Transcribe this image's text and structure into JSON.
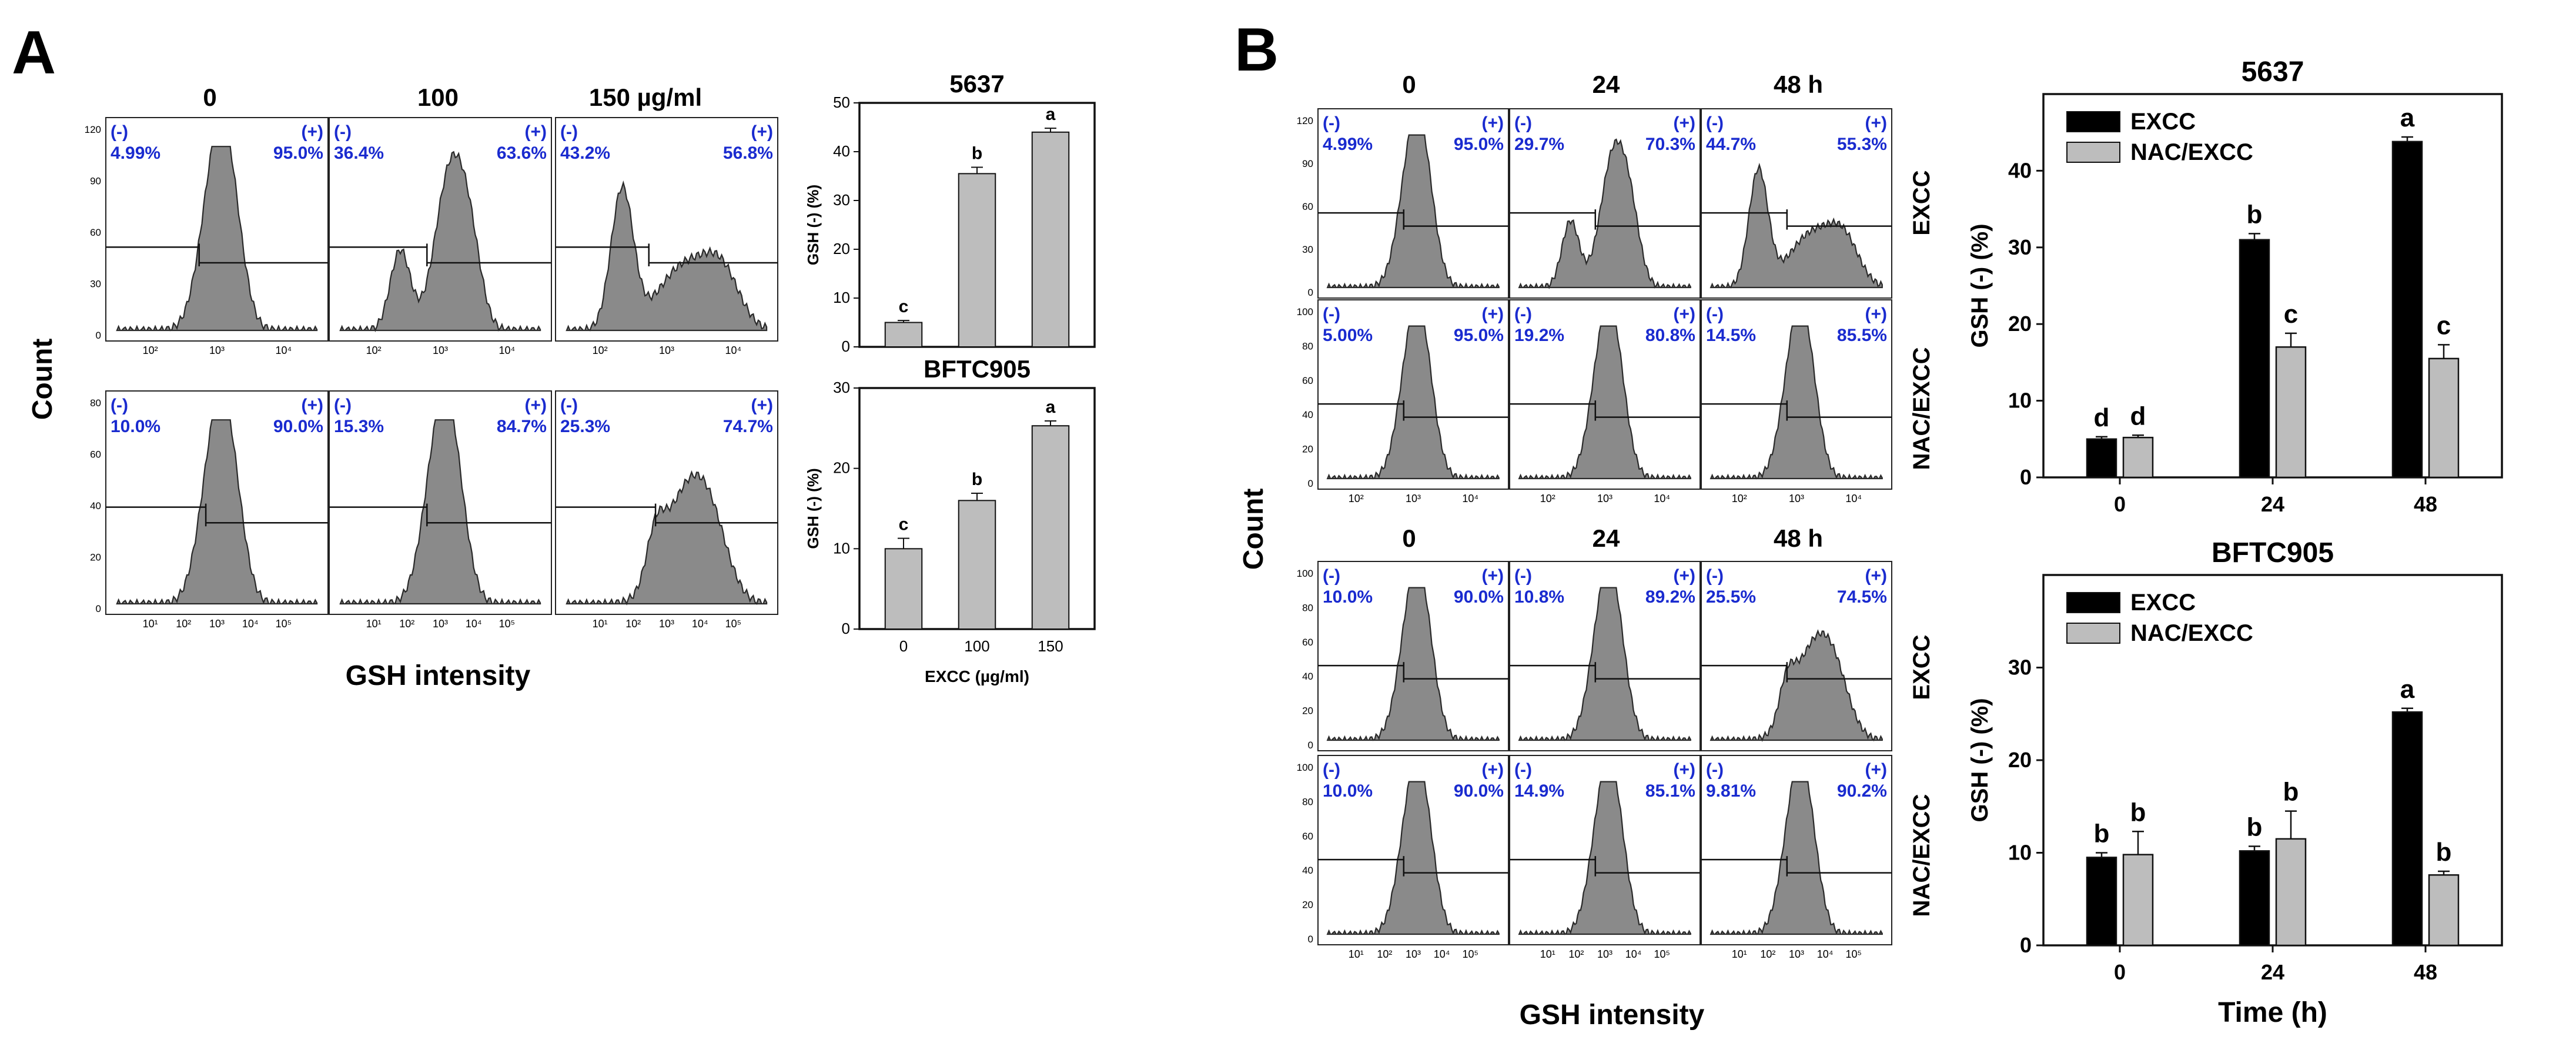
{
  "panelA": {
    "letter": "A",
    "col_headers": [
      "0",
      "100",
      "150 µg/ml"
    ],
    "y_axis_label": "Count",
    "x_axis_label": "GSH intensity",
    "rows": [
      {
        "yticks": [
          "0",
          "30",
          "60",
          "90",
          "120"
        ],
        "xticks": [
          "10²",
          "10³",
          "10⁴"
        ],
        "cells": [
          {
            "neg": "4.99%",
            "pos": "95.0%"
          },
          {
            "neg": "36.4%",
            "pos": "63.6%"
          },
          {
            "neg": "43.2%",
            "pos": "56.8%"
          }
        ]
      },
      {
        "yticks": [
          "0",
          "20",
          "40",
          "60",
          "80"
        ],
        "xticks": [
          "10¹",
          "10²",
          "10³",
          "10⁴",
          "10⁵"
        ],
        "cells": [
          {
            "neg": "10.0%",
            "pos": "90.0%"
          },
          {
            "neg": "15.3%",
            "pos": "84.7%"
          },
          {
            "neg": "25.3%",
            "pos": "74.7%"
          }
        ]
      }
    ],
    "gate_labels": {
      "neg": "(-)",
      "pos": "(+)"
    }
  },
  "panelB": {
    "letter": "B",
    "col_headers_top": [
      "0",
      "24",
      "48 h"
    ],
    "col_headers_bottom": [
      "0",
      "24",
      "48 h"
    ],
    "y_axis_label": "Count",
    "x_axis_label": "GSH intensity",
    "row_labels": [
      "EXCC",
      "NAC/EXCC",
      "EXCC",
      "NAC/EXCC"
    ],
    "rows": [
      {
        "yticks": [
          "0",
          "30",
          "60",
          "90",
          "120"
        ],
        "xticks": [],
        "cells": [
          {
            "neg": "4.99%",
            "pos": "95.0%"
          },
          {
            "neg": "29.7%",
            "pos": "70.3%"
          },
          {
            "neg": "44.7%",
            "pos": "55.3%"
          }
        ]
      },
      {
        "yticks": [
          "0",
          "20",
          "40",
          "60",
          "80",
          "100"
        ],
        "xticks": [
          "10²",
          "10³",
          "10⁴"
        ],
        "cells": [
          {
            "neg": "5.00%",
            "pos": "95.0%"
          },
          {
            "neg": "19.2%",
            "pos": "80.8%"
          },
          {
            "neg": "14.5%",
            "pos": "85.5%"
          }
        ]
      },
      {
        "yticks": [
          "0",
          "20",
          "40",
          "60",
          "80",
          "100"
        ],
        "xticks": [],
        "cells": [
          {
            "neg": "10.0%",
            "pos": "90.0%"
          },
          {
            "neg": "10.8%",
            "pos": "89.2%"
          },
          {
            "neg": "25.5%",
            "pos": "74.5%"
          }
        ]
      },
      {
        "yticks": [
          "0",
          "20",
          "40",
          "60",
          "80",
          "100"
        ],
        "xticks": [
          "10¹",
          "10²",
          "10³",
          "10⁴",
          "10⁵"
        ],
        "cells": [
          {
            "neg": "10.0%",
            "pos": "90.0%"
          },
          {
            "neg": "14.9%",
            "pos": "85.1%"
          },
          {
            "neg": "9.81%",
            "pos": "90.2%"
          }
        ]
      }
    ],
    "gate_labels": {
      "neg": "(-)",
      "pos": "(+)"
    }
  },
  "chart_data": [
    {
      "type": "bar",
      "title": "5637",
      "categories": [
        "0",
        "100",
        "150"
      ],
      "values": [
        5,
        35.5,
        44
      ],
      "errors": [
        0.4,
        1.3,
        0.8
      ],
      "letters": [
        "c",
        "b",
        "a"
      ],
      "xlabel": "",
      "ylabel": "GSH (-) (%)",
      "ylim": [
        0,
        50
      ],
      "yticks": [
        0,
        10,
        20,
        30,
        40,
        50
      ],
      "color": "#bdbdbd"
    },
    {
      "type": "bar",
      "title": "BFTC905",
      "categories": [
        "0",
        "100",
        "150"
      ],
      "values": [
        10,
        16,
        25.3
      ],
      "errors": [
        1.3,
        0.9,
        0.6
      ],
      "letters": [
        "c",
        "b",
        "a"
      ],
      "xlabel": "EXCC (µg/ml)",
      "ylabel": "GSH (-) (%)",
      "ylim": [
        0,
        30
      ],
      "yticks": [
        0,
        10,
        20,
        30
      ],
      "color": "#bdbdbd"
    },
    {
      "type": "bar",
      "title": "5637",
      "categories": [
        "0",
        "24",
        "48"
      ],
      "series": [
        {
          "name": "EXCC",
          "color": "#000000",
          "values": [
            5,
            31,
            43.8
          ],
          "errors": [
            0.3,
            0.8,
            0.6
          ],
          "letters": [
            "d",
            "b",
            "a"
          ]
        },
        {
          "name": "NAC/EXCC",
          "color": "#bdbdbd",
          "values": [
            5.2,
            17,
            15.5
          ],
          "errors": [
            0.3,
            1.8,
            1.8
          ],
          "letters": [
            "d",
            "c",
            "c"
          ]
        }
      ],
      "xlabel": "",
      "ylabel": "GSH (-) (%)",
      "ylim": [
        0,
        50
      ],
      "yticks": [
        0,
        10,
        20,
        30,
        40
      ],
      "legend": "top-left"
    },
    {
      "type": "bar",
      "title": "BFTC905",
      "categories": [
        "0",
        "24",
        "48"
      ],
      "series": [
        {
          "name": "EXCC",
          "color": "#000000",
          "values": [
            9.5,
            10.2,
            25.2
          ],
          "errors": [
            0.5,
            0.5,
            0.4
          ],
          "letters": [
            "b",
            "b",
            "a"
          ]
        },
        {
          "name": "NAC/EXCC",
          "color": "#bdbdbd",
          "values": [
            9.8,
            11.5,
            7.6
          ],
          "errors": [
            2.5,
            3,
            0.4
          ],
          "letters": [
            "b",
            "b",
            "b"
          ]
        }
      ],
      "xlabel": "Time (h)",
      "ylabel": "GSH (-) (%)",
      "ylim": [
        0,
        40
      ],
      "yticks": [
        0,
        10,
        20,
        30
      ],
      "legend": "top-left"
    }
  ]
}
